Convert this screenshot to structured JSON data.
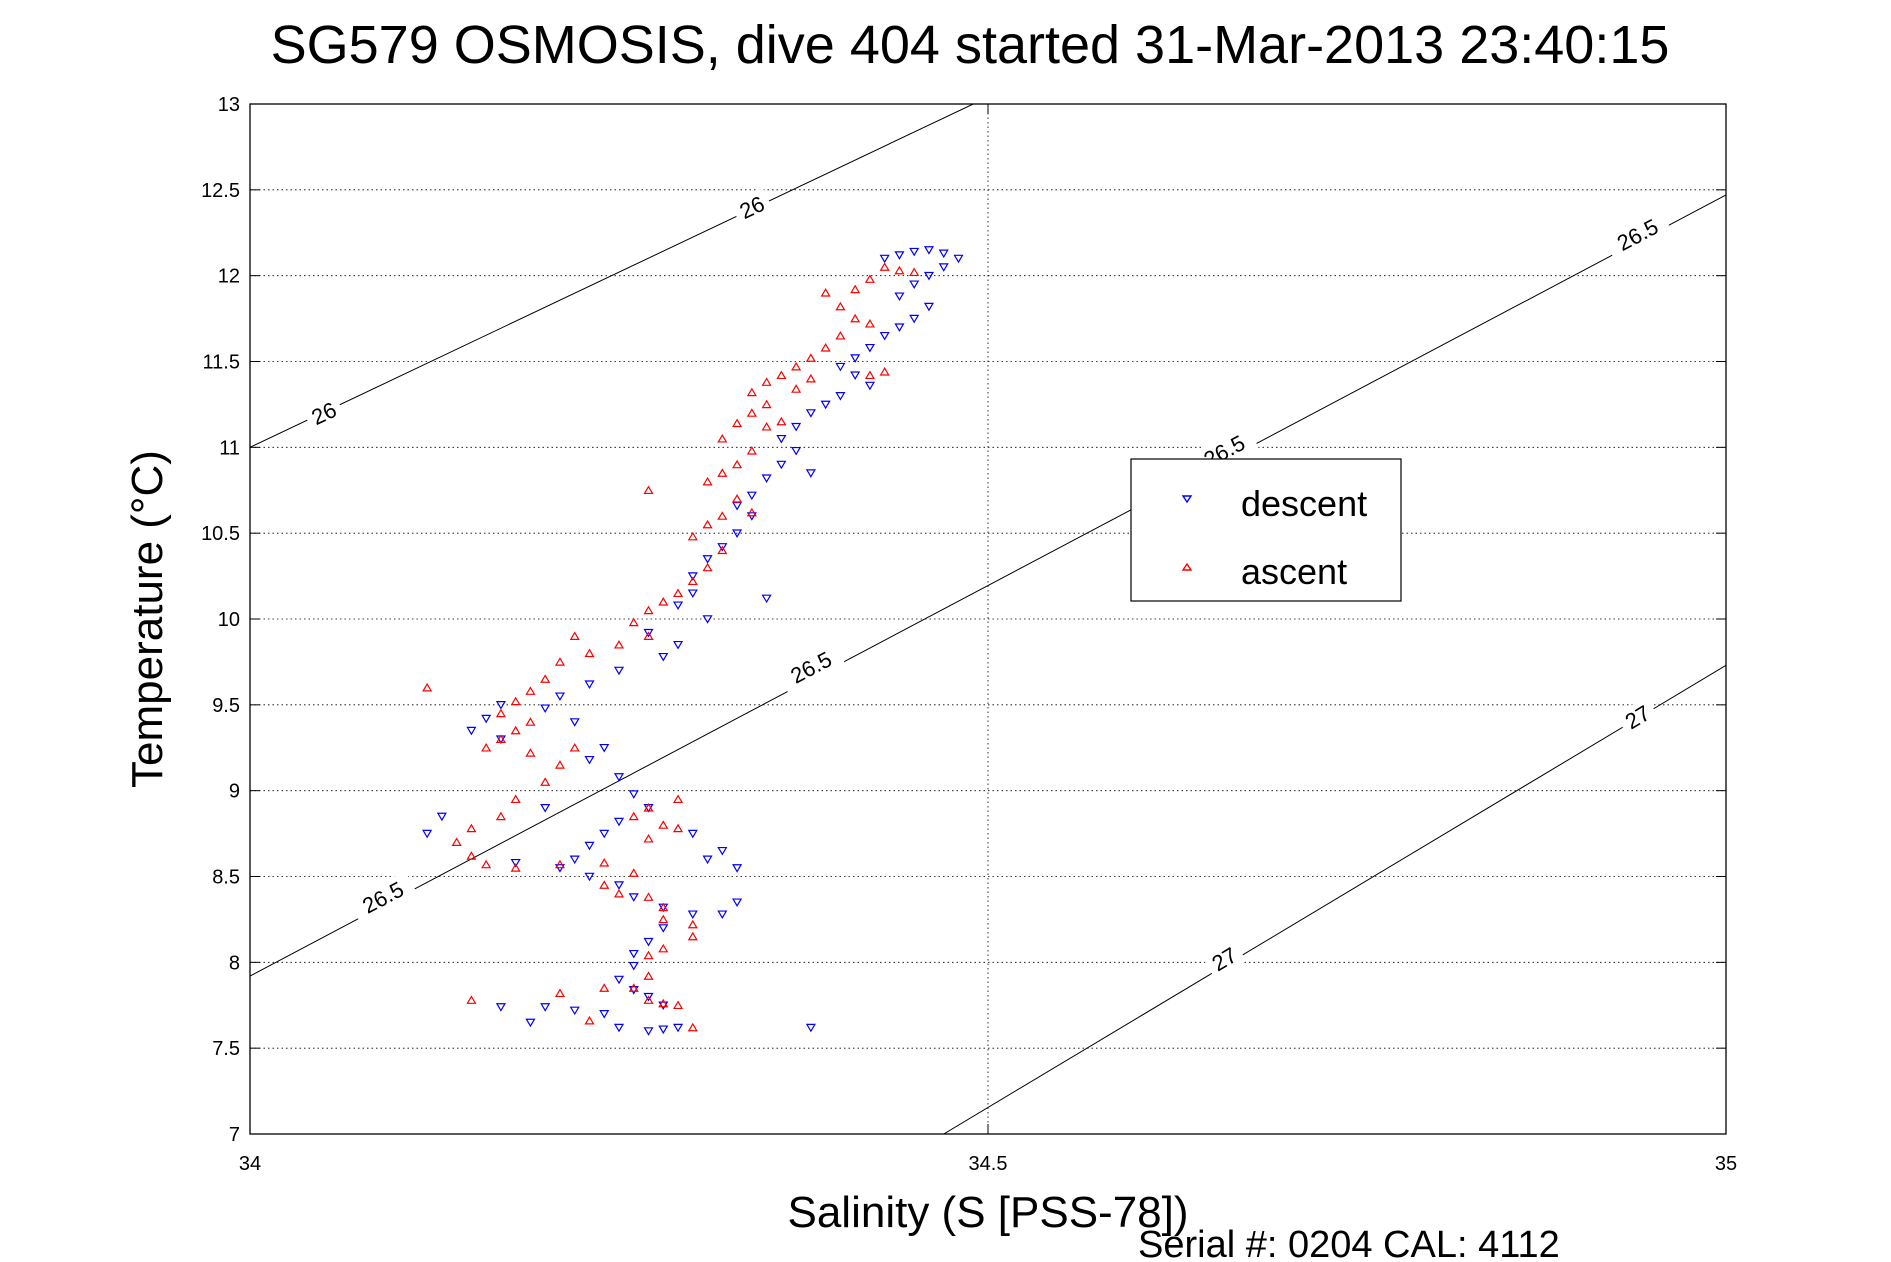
{
  "chart_data": {
    "type": "scatter",
    "title": "SG579 OSMOSIS, dive 404 started 31-Mar-2013 23:40:15",
    "xlabel": "Salinity (S [PSS-78])",
    "ylabel": "Temperature (°C)",
    "xlim": [
      34,
      35
    ],
    "ylim": [
      7,
      13
    ],
    "x_ticks": [
      34,
      34.5,
      35
    ],
    "x_tick_labels": [
      "34",
      "34.5",
      "35"
    ],
    "y_ticks": [
      7,
      7.5,
      8,
      8.5,
      9,
      9.5,
      10,
      10.5,
      11,
      11.5,
      12,
      12.5,
      13
    ],
    "y_tick_labels": [
      "7",
      "7.5",
      "8",
      "8.5",
      "9",
      "9.5",
      "10",
      "10.5",
      "11",
      "11.5",
      "12",
      "12.5",
      "13"
    ],
    "grid": true,
    "legend": {
      "placement": "center-right",
      "entries": [
        "descent",
        "ascent"
      ]
    },
    "footer": "Serial #: 0204  CAL: 4112",
    "colors": {
      "descent": "#0000ff",
      "ascent": "#ff0000",
      "contour": "#000000"
    },
    "contours": [
      {
        "label": "26",
        "points": [
          [
            34.0,
            11.0
          ],
          [
            34.49,
            13.0
          ]
        ],
        "label_positions": [
          [
            34.05,
            11.2
          ],
          [
            34.34,
            12.4
          ]
        ]
      },
      {
        "label": "26.5",
        "points": [
          [
            34.0,
            7.92
          ],
          [
            35.0,
            12.47
          ]
        ],
        "label_positions": [
          [
            34.09,
            8.38
          ],
          [
            34.38,
            9.72
          ],
          [
            34.66,
            10.98
          ],
          [
            34.94,
            12.24
          ]
        ]
      },
      {
        "label": "27",
        "points": [
          [
            34.47,
            7.0
          ],
          [
            35.0,
            9.73
          ]
        ],
        "label_positions": [
          [
            34.66,
            8.02
          ],
          [
            34.94,
            9.43
          ]
        ]
      }
    ],
    "series": [
      {
        "name": "descent",
        "marker": "triangle-down",
        "points": [
          [
            34.45,
            12.14
          ],
          [
            34.46,
            12.15
          ],
          [
            34.47,
            12.13
          ],
          [
            34.48,
            12.1
          ],
          [
            34.44,
            12.12
          ],
          [
            34.43,
            12.1
          ],
          [
            34.47,
            12.05
          ],
          [
            34.46,
            12.0
          ],
          [
            34.45,
            11.95
          ],
          [
            34.44,
            11.88
          ],
          [
            34.46,
            11.82
          ],
          [
            34.45,
            11.75
          ],
          [
            34.44,
            11.7
          ],
          [
            34.43,
            11.65
          ],
          [
            34.42,
            11.58
          ],
          [
            34.41,
            11.52
          ],
          [
            34.4,
            11.47
          ],
          [
            34.41,
            11.42
          ],
          [
            34.42,
            11.36
          ],
          [
            34.4,
            11.3
          ],
          [
            34.39,
            11.25
          ],
          [
            34.38,
            11.2
          ],
          [
            34.37,
            11.12
          ],
          [
            34.36,
            11.05
          ],
          [
            34.37,
            10.98
          ],
          [
            34.36,
            10.9
          ],
          [
            34.35,
            10.82
          ],
          [
            34.38,
            10.85
          ],
          [
            34.34,
            10.72
          ],
          [
            34.33,
            10.66
          ],
          [
            34.34,
            10.6
          ],
          [
            34.33,
            10.5
          ],
          [
            34.32,
            10.42
          ],
          [
            34.31,
            10.35
          ],
          [
            34.3,
            10.25
          ],
          [
            34.3,
            10.15
          ],
          [
            34.29,
            10.08
          ],
          [
            34.31,
            10.0
          ],
          [
            34.35,
            10.12
          ],
          [
            34.27,
            9.92
          ],
          [
            34.29,
            9.85
          ],
          [
            34.28,
            9.78
          ],
          [
            34.25,
            9.7
          ],
          [
            34.23,
            9.62
          ],
          [
            34.21,
            9.55
          ],
          [
            34.2,
            9.48
          ],
          [
            34.17,
            9.5
          ],
          [
            34.16,
            9.42
          ],
          [
            34.15,
            9.35
          ],
          [
            34.17,
            9.3
          ],
          [
            34.22,
            9.4
          ],
          [
            34.24,
            9.25
          ],
          [
            34.23,
            9.18
          ],
          [
            34.25,
            9.08
          ],
          [
            34.26,
            8.98
          ],
          [
            34.27,
            8.9
          ],
          [
            34.25,
            8.82
          ],
          [
            34.24,
            8.75
          ],
          [
            34.23,
            8.68
          ],
          [
            34.22,
            8.6
          ],
          [
            34.21,
            8.55
          ],
          [
            34.23,
            8.5
          ],
          [
            34.25,
            8.45
          ],
          [
            34.26,
            8.38
          ],
          [
            34.28,
            8.32
          ],
          [
            34.3,
            8.28
          ],
          [
            34.32,
            8.28
          ],
          [
            34.33,
            8.35
          ],
          [
            34.33,
            8.55
          ],
          [
            34.32,
            8.65
          ],
          [
            34.31,
            8.6
          ],
          [
            34.3,
            8.75
          ],
          [
            34.28,
            8.2
          ],
          [
            34.27,
            8.12
          ],
          [
            34.26,
            8.05
          ],
          [
            34.26,
            7.98
          ],
          [
            34.25,
            7.9
          ],
          [
            34.26,
            7.84
          ],
          [
            34.27,
            7.8
          ],
          [
            34.28,
            7.75
          ],
          [
            34.24,
            7.7
          ],
          [
            34.22,
            7.72
          ],
          [
            34.2,
            7.74
          ],
          [
            34.17,
            7.74
          ],
          [
            34.19,
            7.65
          ],
          [
            34.25,
            7.62
          ],
          [
            34.27,
            7.6
          ],
          [
            34.28,
            7.61
          ],
          [
            34.29,
            7.62
          ],
          [
            34.38,
            7.62
          ],
          [
            34.12,
            8.75
          ],
          [
            34.13,
            8.85
          ],
          [
            34.18,
            8.58
          ],
          [
            34.2,
            8.9
          ]
        ]
      },
      {
        "name": "ascent",
        "marker": "triangle-up",
        "points": [
          [
            34.43,
            12.05
          ],
          [
            34.44,
            12.03
          ],
          [
            34.45,
            12.02
          ],
          [
            34.42,
            11.98
          ],
          [
            34.41,
            11.92
          ],
          [
            34.4,
            11.82
          ],
          [
            34.41,
            11.75
          ],
          [
            34.42,
            11.72
          ],
          [
            34.4,
            11.65
          ],
          [
            34.39,
            11.58
          ],
          [
            34.38,
            11.52
          ],
          [
            34.37,
            11.47
          ],
          [
            34.36,
            11.42
          ],
          [
            34.35,
            11.38
          ],
          [
            34.34,
            11.32
          ],
          [
            34.35,
            11.25
          ],
          [
            34.34,
            11.2
          ],
          [
            34.36,
            11.15
          ],
          [
            34.35,
            11.12
          ],
          [
            34.33,
            11.14
          ],
          [
            34.32,
            11.05
          ],
          [
            34.34,
            10.98
          ],
          [
            34.33,
            10.9
          ],
          [
            34.32,
            10.85
          ],
          [
            34.31,
            10.8
          ],
          [
            34.33,
            10.7
          ],
          [
            34.34,
            10.62
          ],
          [
            34.32,
            10.6
          ],
          [
            34.31,
            10.55
          ],
          [
            34.3,
            10.48
          ],
          [
            34.32,
            10.4
          ],
          [
            34.31,
            10.3
          ],
          [
            34.3,
            10.22
          ],
          [
            34.29,
            10.15
          ],
          [
            34.28,
            10.1
          ],
          [
            34.27,
            10.05
          ],
          [
            34.26,
            9.98
          ],
          [
            34.27,
            9.9
          ],
          [
            34.25,
            9.85
          ],
          [
            34.23,
            9.8
          ],
          [
            34.21,
            9.75
          ],
          [
            34.2,
            9.65
          ],
          [
            34.19,
            9.58
          ],
          [
            34.18,
            9.52
          ],
          [
            34.17,
            9.45
          ],
          [
            34.19,
            9.4
          ],
          [
            34.18,
            9.35
          ],
          [
            34.17,
            9.3
          ],
          [
            34.16,
            9.25
          ],
          [
            34.19,
            9.22
          ],
          [
            34.22,
            9.25
          ],
          [
            34.21,
            9.15
          ],
          [
            34.2,
            9.05
          ],
          [
            34.18,
            8.95
          ],
          [
            34.17,
            8.85
          ],
          [
            34.15,
            8.78
          ],
          [
            34.14,
            8.7
          ],
          [
            34.15,
            8.62
          ],
          [
            34.16,
            8.57
          ],
          [
            34.18,
            8.55
          ],
          [
            34.21,
            8.57
          ],
          [
            34.24,
            8.58
          ],
          [
            34.26,
            8.52
          ],
          [
            34.24,
            8.45
          ],
          [
            34.25,
            8.4
          ],
          [
            34.27,
            8.38
          ],
          [
            34.28,
            8.32
          ],
          [
            34.28,
            8.25
          ],
          [
            34.3,
            8.22
          ],
          [
            34.3,
            8.15
          ],
          [
            34.28,
            8.08
          ],
          [
            34.27,
            8.04
          ],
          [
            34.27,
            8.72
          ],
          [
            34.28,
            8.8
          ],
          [
            34.26,
            8.85
          ],
          [
            34.27,
            8.9
          ],
          [
            34.29,
            8.78
          ],
          [
            34.29,
            8.95
          ],
          [
            34.27,
            7.92
          ],
          [
            34.26,
            7.85
          ],
          [
            34.27,
            7.78
          ],
          [
            34.28,
            7.76
          ],
          [
            34.29,
            7.75
          ],
          [
            34.3,
            7.62
          ],
          [
            34.24,
            7.85
          ],
          [
            34.21,
            7.82
          ],
          [
            34.15,
            7.78
          ],
          [
            34.23,
            7.66
          ],
          [
            34.12,
            9.6
          ],
          [
            34.27,
            10.75
          ],
          [
            34.39,
            11.9
          ],
          [
            34.43,
            11.44
          ],
          [
            34.42,
            11.42
          ],
          [
            34.38,
            11.4
          ],
          [
            34.37,
            11.34
          ],
          [
            34.22,
            9.9
          ]
        ]
      }
    ]
  }
}
